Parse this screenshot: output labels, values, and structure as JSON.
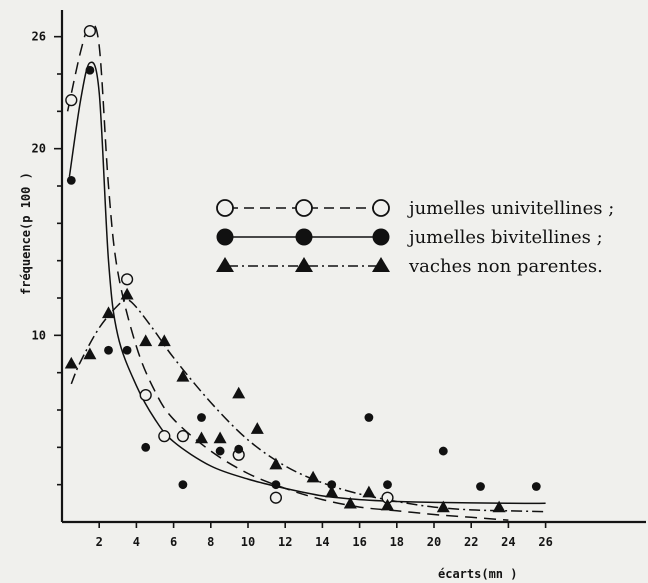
{
  "chart_data": {
    "type": "scatter",
    "title": "",
    "xlabel": "écarts(mn )",
    "ylabel": "fréquence(p 100 )",
    "xlim": [
      0,
      30
    ],
    "ylim": [
      0,
      27
    ],
    "x_ticks": [
      2,
      4,
      6,
      8,
      10,
      12,
      14,
      16,
      18,
      20,
      22,
      24,
      26
    ],
    "y_ticks": [
      10,
      20,
      26
    ],
    "y_minor_ticks": [
      2,
      4,
      6,
      8,
      12,
      14,
      16,
      18,
      22,
      24
    ],
    "grid": false,
    "legend_placement": "middle-right",
    "series": [
      {
        "name": "jumelles univitellines ;",
        "marker": "open-circle",
        "line_style": "long-dash",
        "color": "#111111",
        "points": [
          {
            "x": 0.5,
            "y": 22.6
          },
          {
            "x": 1.5,
            "y": 26.3
          },
          {
            "x": 3.5,
            "y": 13.0
          },
          {
            "x": 4.5,
            "y": 6.8
          },
          {
            "x": 5.5,
            "y": 4.6
          },
          {
            "x": 6.5,
            "y": 4.6
          },
          {
            "x": 9.5,
            "y": 3.6
          },
          {
            "x": 11.5,
            "y": 1.3
          },
          {
            "x": 17.5,
            "y": 1.3
          }
        ],
        "fitted_curve": [
          [
            0.3,
            22.0
          ],
          [
            1.0,
            25.2
          ],
          [
            1.5,
            26.6
          ],
          [
            2.0,
            25.5
          ],
          [
            2.5,
            18.0
          ],
          [
            3.0,
            13.4
          ],
          [
            4.0,
            9.4
          ],
          [
            5.0,
            7.0
          ],
          [
            6.0,
            5.5
          ],
          [
            8.0,
            3.8
          ],
          [
            10.0,
            2.6
          ],
          [
            12.0,
            1.8
          ],
          [
            14.0,
            1.2
          ],
          [
            16.0,
            0.8
          ],
          [
            18.0,
            0.6
          ],
          [
            20.0,
            0.4
          ],
          [
            22.0,
            0.25
          ],
          [
            24.0,
            0.1
          ]
        ]
      },
      {
        "name": "jumelles bivitellines ;",
        "marker": "filled-circle",
        "line_style": "solid",
        "color": "#111111",
        "points": [
          {
            "x": 0.5,
            "y": 18.3
          },
          {
            "x": 1.5,
            "y": 24.2
          },
          {
            "x": 2.5,
            "y": 9.2
          },
          {
            "x": 3.5,
            "y": 9.2
          },
          {
            "x": 4.5,
            "y": 4.0
          },
          {
            "x": 6.5,
            "y": 2.0
          },
          {
            "x": 7.5,
            "y": 5.6
          },
          {
            "x": 8.5,
            "y": 3.8
          },
          {
            "x": 9.5,
            "y": 3.9
          },
          {
            "x": 11.5,
            "y": 2.0
          },
          {
            "x": 14.5,
            "y": 2.0
          },
          {
            "x": 16.5,
            "y": 5.6
          },
          {
            "x": 17.5,
            "y": 2.0
          },
          {
            "x": 20.5,
            "y": 3.8
          },
          {
            "x": 22.5,
            "y": 1.9
          },
          {
            "x": 25.5,
            "y": 1.9
          }
        ],
        "fitted_curve": [
          [
            0.4,
            18.5
          ],
          [
            1.0,
            22.6
          ],
          [
            1.5,
            24.6
          ],
          [
            2.0,
            23.0
          ],
          [
            2.5,
            14.0
          ],
          [
            3.0,
            10.0
          ],
          [
            4.0,
            7.3
          ],
          [
            5.0,
            5.5
          ],
          [
            6.0,
            4.3
          ],
          [
            8.0,
            3.0
          ],
          [
            10.0,
            2.3
          ],
          [
            12.0,
            1.8
          ],
          [
            14.0,
            1.4
          ],
          [
            16.0,
            1.2
          ],
          [
            18.0,
            1.1
          ],
          [
            20.0,
            1.05
          ],
          [
            24.0,
            1.0
          ],
          [
            26.0,
            1.0
          ]
        ]
      },
      {
        "name": "vaches non parentes.",
        "marker": "filled-triangle",
        "line_style": "dash-dot",
        "color": "#111111",
        "points": [
          {
            "x": 0.5,
            "y": 8.5
          },
          {
            "x": 1.5,
            "y": 9.0
          },
          {
            "x": 2.5,
            "y": 11.2
          },
          {
            "x": 3.5,
            "y": 12.2
          },
          {
            "x": 4.5,
            "y": 9.7
          },
          {
            "x": 5.5,
            "y": 9.7
          },
          {
            "x": 6.5,
            "y": 7.8
          },
          {
            "x": 7.5,
            "y": 4.5
          },
          {
            "x": 8.5,
            "y": 4.5
          },
          {
            "x": 9.5,
            "y": 6.9
          },
          {
            "x": 10.5,
            "y": 5.0
          },
          {
            "x": 11.5,
            "y": 3.1
          },
          {
            "x": 13.5,
            "y": 2.4
          },
          {
            "x": 14.5,
            "y": 1.6
          },
          {
            "x": 15.5,
            "y": 1.0
          },
          {
            "x": 16.5,
            "y": 1.6
          },
          {
            "x": 17.5,
            "y": 0.9
          },
          {
            "x": 20.5,
            "y": 0.8
          },
          {
            "x": 23.5,
            "y": 0.8
          }
        ],
        "fitted_curve": [
          [
            0.5,
            7.4
          ],
          [
            1.0,
            8.6
          ],
          [
            2.0,
            10.4
          ],
          [
            3.0,
            11.6
          ],
          [
            3.5,
            11.9
          ],
          [
            4.0,
            11.5
          ],
          [
            5.0,
            10.2
          ],
          [
            6.0,
            8.8
          ],
          [
            8.0,
            6.4
          ],
          [
            10.0,
            4.4
          ],
          [
            12.0,
            3.0
          ],
          [
            14.0,
            2.1
          ],
          [
            16.0,
            1.5
          ],
          [
            18.0,
            1.1
          ],
          [
            20.0,
            0.8
          ],
          [
            22.0,
            0.65
          ],
          [
            24.0,
            0.6
          ],
          [
            26.0,
            0.55
          ]
        ]
      }
    ]
  }
}
